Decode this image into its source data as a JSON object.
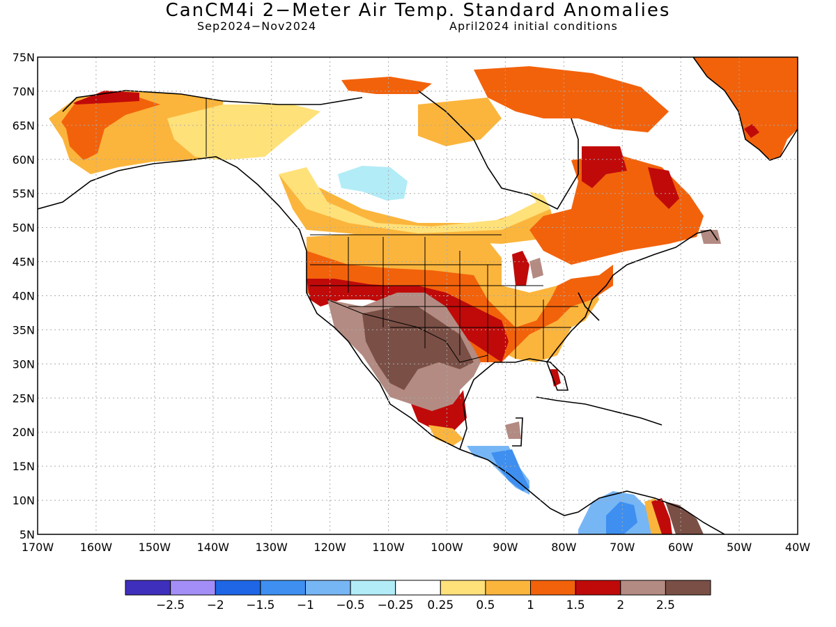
{
  "title": "CanCM4i 2−Meter Air Temp. Standard Anomalies",
  "subtitle_left": "Sep2024−Nov2024",
  "subtitle_right": "April2024 initial conditions",
  "map": {
    "lat_labels": [
      "75N",
      "70N",
      "65N",
      "60N",
      "55N",
      "50N",
      "45N",
      "40N",
      "35N",
      "30N",
      "25N",
      "20N",
      "15N",
      "10N",
      "5N"
    ],
    "lon_labels": [
      "170W",
      "160W",
      "150W",
      "140W",
      "130W",
      "120W",
      "110W",
      "100W",
      "90W",
      "80W",
      "70W",
      "60W",
      "50W",
      "40W"
    ],
    "grid": "dotted"
  },
  "colorbar": {
    "colors": [
      "#3f2fbd",
      "#a38ef7",
      "#1f66e6",
      "#3e8ff0",
      "#77b6f5",
      "#b2ecf7",
      "#ffffff",
      "#ffe17a",
      "#fbb53c",
      "#f2620b",
      "#c00a0a",
      "#b38b82",
      "#7a4f45"
    ],
    "labels": [
      "−2.5",
      "−2",
      "−1.5",
      "−1",
      "−0.5",
      "−0.25",
      "0.25",
      "0.5",
      "1",
      "1.5",
      "2",
      "2.5"
    ]
  }
}
